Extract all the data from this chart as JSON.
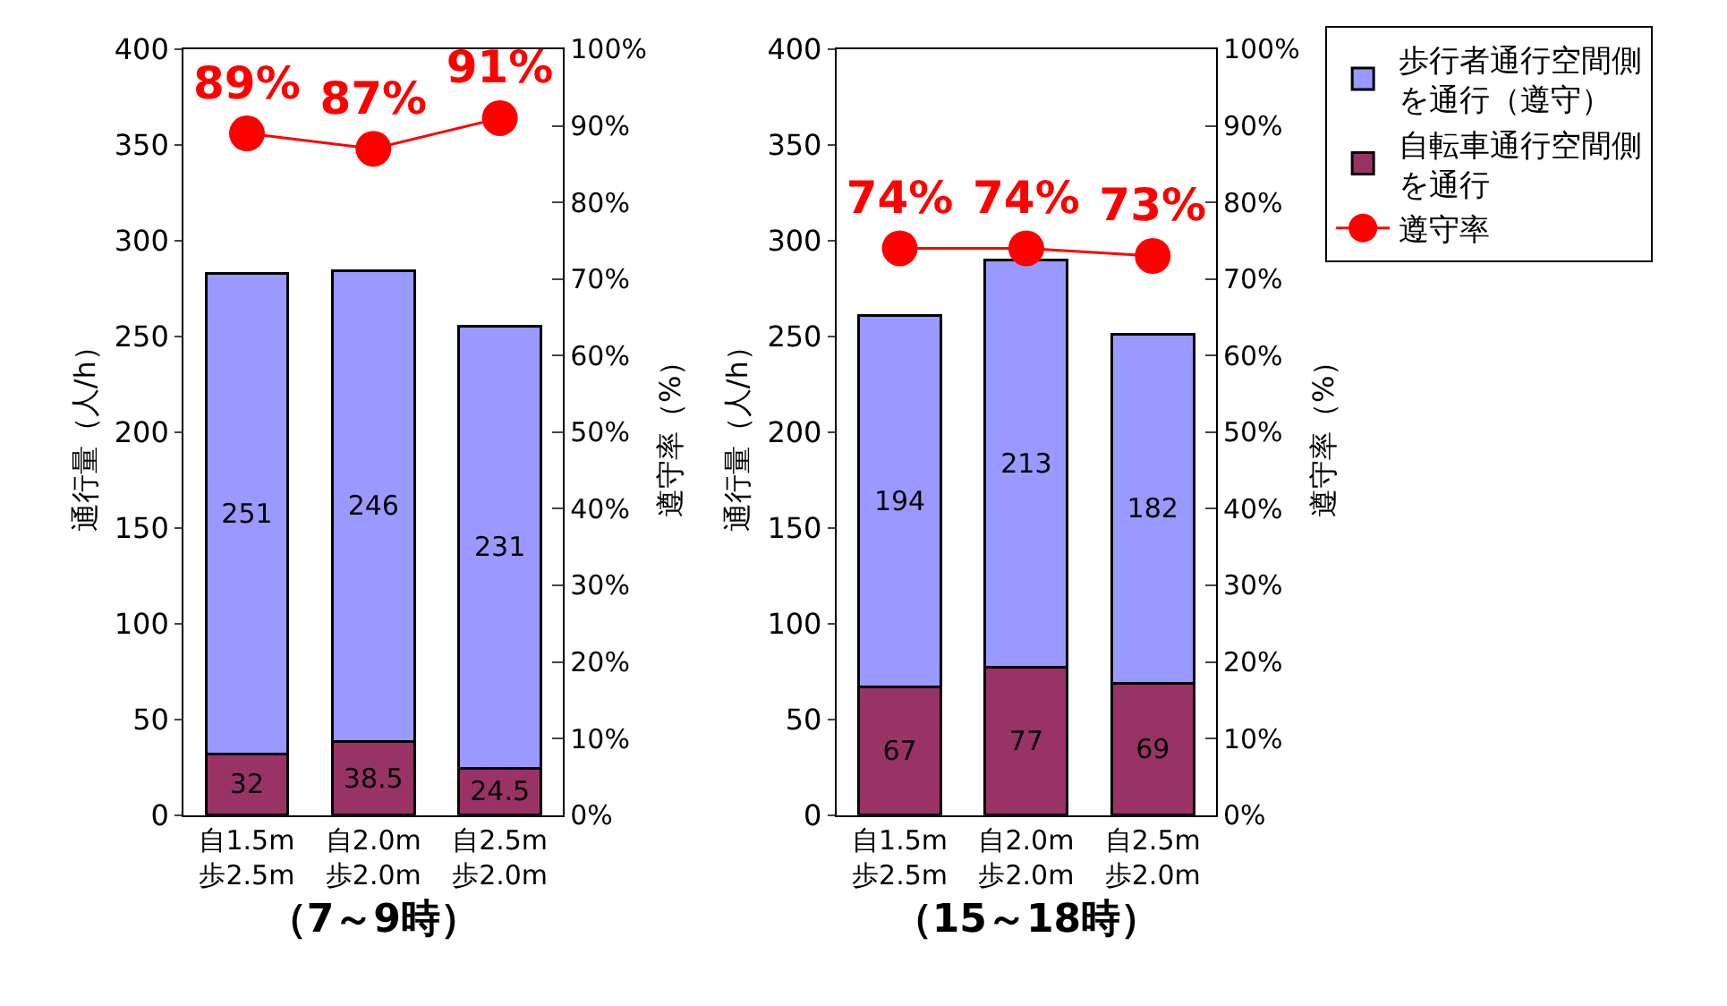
{
  "chart_data": [
    {
      "type": "bar",
      "stacked": true,
      "xlabel": "（7～9時）",
      "ylabel": "通行量（人/h）",
      "y2label": "遵守率（%）",
      "categories": [
        "自1.5m\n歩2.5m",
        "自2.0m\n歩2.0m",
        "自2.5m\n歩2.0m"
      ],
      "ylim": [
        0,
        400
      ],
      "yticks": [
        0,
        50,
        100,
        150,
        200,
        250,
        300,
        350,
        400
      ],
      "y2lim": [
        0,
        100
      ],
      "y2ticks": [
        {
          "value": 0,
          "label": "0%"
        },
        {
          "value": 10,
          "label": "10%"
        },
        {
          "value": 20,
          "label": "20%"
        },
        {
          "value": 30,
          "label": "30%"
        },
        {
          "value": 40,
          "label": "40%"
        },
        {
          "value": 50,
          "label": "50%"
        },
        {
          "value": 60,
          "label": "60%"
        },
        {
          "value": 70,
          "label": "70%"
        },
        {
          "value": 80,
          "label": "80%"
        },
        {
          "value": 90,
          "label": "90%"
        },
        {
          "value": 100,
          "label": "100%"
        }
      ],
      "legend": false,
      "marker": "circle",
      "line_style": "solid",
      "series": [
        {
          "color": "#993366",
          "values": [
            32,
            38.5,
            24.5
          ],
          "value_labels": [
            "32",
            "38.5",
            "24.5"
          ]
        },
        {
          "color": "#9999ff",
          "values": [
            251,
            246,
            231
          ],
          "value_labels": [
            "251",
            "246",
            "231"
          ]
        },
        {
          "type": "line",
          "axis": "y2",
          "color": "#ff0000",
          "values": [
            89,
            87,
            91
          ],
          "value_labels": [
            "89%",
            "87%",
            "91%"
          ]
        }
      ]
    },
    {
      "type": "bar",
      "stacked": true,
      "xlabel": "（15～18時）",
      "ylabel": "通行量（人/h）",
      "y2label": "遵守率（%）",
      "categories": [
        "自1.5m\n歩2.5m",
        "自2.0m\n歩2.0m",
        "自2.5m\n歩2.0m"
      ],
      "ylim": [
        0,
        400
      ],
      "yticks": [
        0,
        50,
        100,
        150,
        200,
        250,
        300,
        350,
        400
      ],
      "y2lim": [
        0,
        100
      ],
      "y2ticks": [
        {
          "value": 0,
          "label": "0%"
        },
        {
          "value": 10,
          "label": "10%"
        },
        {
          "value": 20,
          "label": "20%"
        },
        {
          "value": 30,
          "label": "30%"
        },
        {
          "value": 40,
          "label": "40%"
        },
        {
          "value": 50,
          "label": "50%"
        },
        {
          "value": 60,
          "label": "60%"
        },
        {
          "value": 70,
          "label": "70%"
        },
        {
          "value": 80,
          "label": "80%"
        },
        {
          "value": 90,
          "label": "90%"
        },
        {
          "value": 100,
          "label": "100%"
        }
      ],
      "legend": "right",
      "marker": "circle",
      "line_style": "solid",
      "series": [
        {
          "name": "自転車通行空間側を通行",
          "color": "#993366",
          "values": [
            67,
            77,
            69
          ],
          "value_labels": [
            "67",
            "77",
            "69"
          ]
        },
        {
          "name": "歩行者通行空間側を通行（遵守）",
          "color": "#9999ff",
          "values": [
            194,
            213,
            182
          ],
          "value_labels": [
            "194",
            "213",
            "182"
          ]
        },
        {
          "type": "line",
          "name": "遵守率",
          "axis": "y2",
          "color": "#ff0000",
          "values": [
            74,
            74,
            73
          ],
          "value_labels": [
            "74%",
            "74%",
            "73%"
          ]
        }
      ]
    }
  ]
}
